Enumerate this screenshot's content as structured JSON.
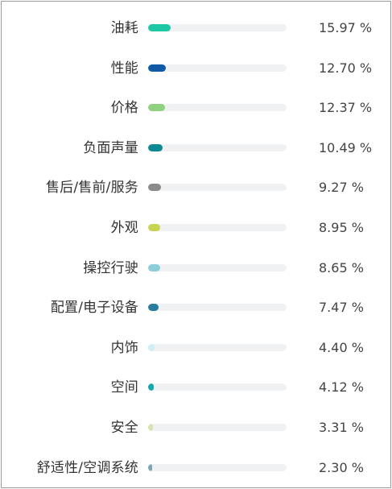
{
  "chart_data": {
    "type": "bar",
    "orientation": "horizontal",
    "max_value": 100,
    "categories": [
      "油耗",
      "性能",
      "价格",
      "负面声量",
      "售后/售前/服务",
      "外观",
      "操控行驶",
      "配置/电子设备",
      "内饰",
      "空间",
      "安全",
      "舒适性/空调系统"
    ],
    "values": [
      15.97,
      12.7,
      12.37,
      10.49,
      9.27,
      8.95,
      8.65,
      7.47,
      4.4,
      4.12,
      3.31,
      2.3
    ],
    "value_labels": [
      "15.97 %",
      "12.70 %",
      "12.37 %",
      "10.49 %",
      "9.27 %",
      "8.95 %",
      "8.65 %",
      "7.47 %",
      "4.40 %",
      "4.12 %",
      "3.31 %",
      "2.30 %"
    ],
    "colors": [
      "#1ec8a5",
      "#0e5aa7",
      "#8fd17f",
      "#0f8a94",
      "#8a8a8a",
      "#c8d44f",
      "#8ccfdb",
      "#2a7d9e",
      "#cfeef3",
      "#12a8b0",
      "#d7e3b0",
      "#7fa6b8"
    ],
    "track_color": "#f0f1f3"
  }
}
